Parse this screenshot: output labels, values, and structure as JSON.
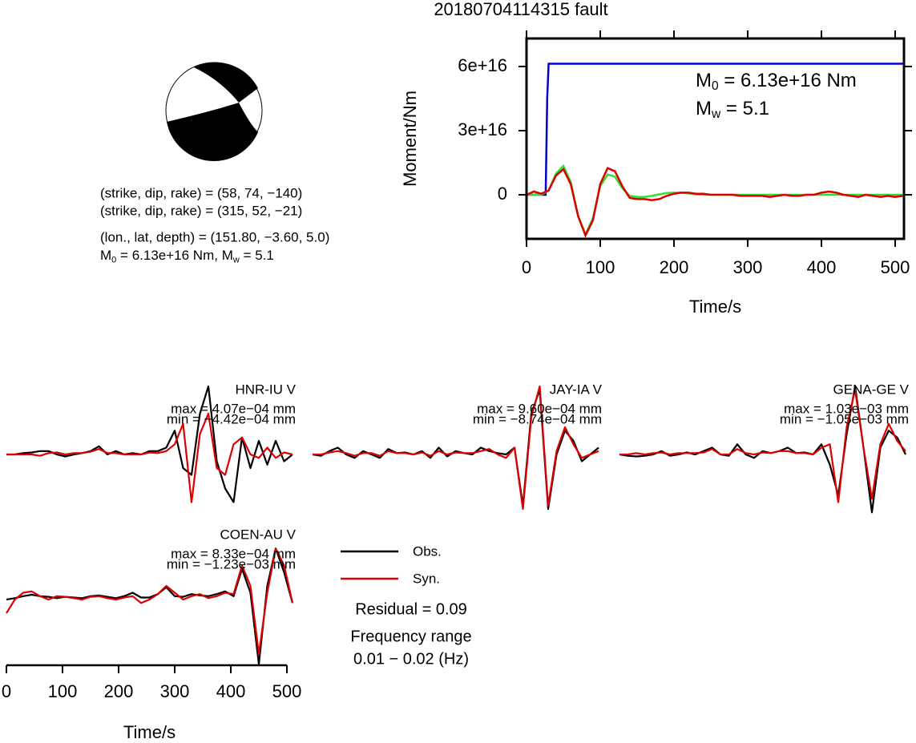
{
  "title": "20180704114315 fault",
  "mechanism": {
    "lines": [
      "(strike, dip, rake) = (58, 74, −140)",
      "(strike, dip, rake) = (315, 52, −21)",
      "(lon., lat, depth) = (151.80, −3.60, 5.0)"
    ],
    "moment_line": [
      "M",
      "0",
      " = 6.13e+16 Nm, M",
      "w",
      " = 5.1"
    ]
  },
  "fit": {
    "residual": "Residual = 0.09",
    "frequency_title": "Frequency range",
    "frequency": "0.01 − 0.02 (Hz)"
  },
  "chart_data": [
    {
      "type": "line",
      "ylabel": "Moment/Nm",
      "xlabel": "Time/s",
      "xlim": [
        0,
        512
      ],
      "xticks": [
        0,
        100,
        200,
        300,
        400,
        500
      ],
      "ylim": [
        -2.06e+16,
        7.31e+16
      ],
      "yticks": [
        0,
        {
          "value": 3e+16,
          "label": "3e+16"
        },
        {
          "value": 6e+16,
          "label": "6e+16"
        }
      ],
      "annotations": [
        [
          "M",
          "0",
          " = 6.13e+16 Nm"
        ],
        [
          "M",
          "w",
          " = 5.1"
        ]
      ],
      "series": [
        {
          "color": "#0000cc",
          "x": [
            0,
            26,
            28,
            30,
            512
          ],
          "values": [
            0,
            0,
            4.5e+16,
            6.13e+16,
            6.13e+16
          ]
        },
        {
          "color": "#33dd33",
          "x": [
            0,
            10,
            20,
            30,
            40,
            50,
            60,
            70,
            80,
            90,
            100,
            110,
            120,
            130,
            140,
            150,
            160,
            170,
            180,
            190,
            200,
            210,
            220,
            230,
            240,
            250,
            260,
            270,
            280,
            290,
            300,
            310,
            320,
            330,
            340,
            350,
            360,
            370,
            380,
            390,
            400,
            410,
            420,
            430,
            440,
            450,
            460,
            470,
            480,
            490,
            500,
            510
          ],
          "values": [
            0,
            0,
            0,
            2000000000000000.0,
            1e+16,
            1.35e+16,
            6000000000000000.0,
            -1e+16,
            -1.85e+16,
            -1.1e+16,
            4000000000000000.0,
            9500000000000000.0,
            8500000000000000.0,
            3000000000000000.0,
            -500000000000000.0,
            -1000000000000000.0,
            -1000000000000000.0,
            -500000000000000.0,
            200000000000000.0,
            800000000000000.0,
            1000000000000000.0,
            1000000000000000.0,
            600000000000000.0,
            200000000000000.0,
            0,
            0,
            0,
            0,
            0,
            0,
            0,
            0,
            0,
            0,
            0,
            0,
            0,
            0,
            0,
            0,
            0,
            0,
            0,
            0,
            0,
            0,
            0,
            0,
            0,
            0,
            0,
            0
          ]
        },
        {
          "color": "#dd0000",
          "x": [
            0,
            10,
            20,
            30,
            40,
            50,
            60,
            70,
            80,
            90,
            100,
            110,
            120,
            130,
            140,
            150,
            160,
            170,
            180,
            190,
            200,
            210,
            220,
            230,
            240,
            250,
            260,
            270,
            280,
            290,
            300,
            310,
            320,
            330,
            340,
            350,
            360,
            370,
            380,
            390,
            400,
            410,
            420,
            430,
            440,
            450,
            460,
            470,
            480,
            490,
            500,
            510
          ],
          "values": [
            0,
            1500000000000000.0,
            500000000000000.0,
            2000000000000000.0,
            9000000000000000.0,
            1.2e+16,
            5000000000000000.0,
            -1e+16,
            -1.9e+16,
            -1.2e+16,
            5000000000000000.0,
            1.25e+16,
            1.1e+16,
            4000000000000000.0,
            -1500000000000000.0,
            -2000000000000000.0,
            -2000000000000000.0,
            -2500000000000000.0,
            -2000000000000000.0,
            -500000000000000.0,
            500000000000000.0,
            1000000000000000.0,
            1000000000000000.0,
            500000000000000.0,
            500000000000000.0,
            0,
            0,
            0,
            0,
            -500000000000000.0,
            -500000000000000.0,
            -500000000000000.0,
            -500000000000000.0,
            -1000000000000000.0,
            -500000000000000.0,
            0,
            -500000000000000.0,
            -500000000000000.0,
            0,
            0,
            1000000000000000.0,
            1500000000000000.0,
            1000000000000000.0,
            0,
            -500000000000000.0,
            -1000000000000000.0,
            0,
            -500000000000000.0,
            -1000000000000000.0,
            -500000000000000.0,
            -1000000000000000.0,
            -500000000000000.0
          ]
        }
      ]
    },
    {
      "type": "waveform",
      "title": "HNR-IU V",
      "max_label": "max = 4.07e−04 mm",
      "min_label": "min = −4.42e−04 mm",
      "xlim": [
        0,
        510
      ],
      "ylim": [
        -1,
        1
      ],
      "x": [
        0,
        15,
        30,
        45,
        60,
        75,
        90,
        105,
        120,
        135,
        150,
        165,
        180,
        195,
        210,
        225,
        240,
        255,
        270,
        285,
        300,
        315,
        330,
        345,
        360,
        375,
        390,
        405,
        420,
        435,
        450,
        465,
        480,
        495,
        510
      ],
      "series": [
        {
          "name": "Obs.",
          "color": "#000000",
          "values": [
            0,
            0,
            0.02,
            0.03,
            0.05,
            0.05,
            0,
            -0.03,
            0,
            0.02,
            0.05,
            0.12,
            0,
            0.05,
            0,
            0.02,
            0,
            0.05,
            0.05,
            0.1,
            0.35,
            -0.2,
            -0.3,
            0.6,
            1.0,
            -0.1,
            -0.5,
            -0.7,
            0.25,
            -0.2,
            0.2,
            -0.15,
            0.2,
            -0.1,
            0
          ]
        },
        {
          "name": "Syn.",
          "color": "#dd0000",
          "values": [
            0,
            0,
            0,
            0,
            -0.02,
            0.02,
            0.03,
            0,
            0.02,
            0.02,
            0.04,
            0.08,
            0.02,
            0.02,
            0,
            0,
            0,
            0.03,
            0.02,
            0.05,
            0.15,
            0.45,
            -0.7,
            0.3,
            0.6,
            -0.2,
            -0.3,
            0.15,
            0.25,
            0,
            -0.05,
            0.1,
            -0.05,
            0.03,
            0
          ]
        }
      ]
    },
    {
      "type": "waveform",
      "title": "JAY-IA V",
      "max_label": "max = 9.60e−04 mm",
      "min_label": "min = −8.74e−04 mm",
      "xlim": [
        0,
        510
      ],
      "ylim": [
        -1,
        1
      ],
      "x": [
        0,
        15,
        30,
        45,
        60,
        75,
        90,
        105,
        120,
        135,
        150,
        165,
        180,
        195,
        210,
        225,
        240,
        255,
        270,
        285,
        300,
        315,
        330,
        345,
        360,
        375,
        390,
        405,
        420,
        435,
        450,
        465,
        480,
        495,
        510
      ],
      "series": [
        {
          "color": "#000000",
          "values": [
            0,
            -0.02,
            0.05,
            0.1,
            0,
            -0.05,
            0.05,
            0,
            -0.05,
            0.08,
            0.02,
            0.03,
            0,
            0.05,
            -0.05,
            0.1,
            -0.03,
            0.05,
            0.02,
            0,
            0.1,
            0.05,
            0.02,
            0,
            0.1,
            -0.75,
            0.6,
            0.95,
            -0.8,
            0,
            0.35,
            0.2,
            -0.1,
            0,
            0.1
          ]
        },
        {
          "color": "#dd0000",
          "values": [
            0,
            0,
            0.03,
            0.05,
            0.02,
            -0.02,
            0.02,
            0.02,
            -0.02,
            0.05,
            0.02,
            0.02,
            0,
            0.03,
            -0.02,
            0.05,
            0,
            0.03,
            0.02,
            0.02,
            0.05,
            0.08,
            0,
            -0.05,
            0.1,
            -0.8,
            0.55,
            1.0,
            -0.75,
            0.05,
            0.4,
            0.15,
            -0.05,
            0,
            0.05
          ]
        }
      ]
    },
    {
      "type": "waveform",
      "title": "GENA-GE V",
      "max_label": "max = 1.03e−03 mm",
      "min_label": "min = −1.05e−03 mm",
      "xlim": [
        0,
        510
      ],
      "ylim": [
        -1,
        1
      ],
      "x": [
        0,
        15,
        30,
        45,
        60,
        75,
        90,
        105,
        120,
        135,
        150,
        165,
        180,
        195,
        210,
        225,
        240,
        255,
        270,
        285,
        300,
        315,
        330,
        345,
        360,
        375,
        390,
        405,
        420,
        435,
        450,
        465,
        480,
        495,
        510
      ],
      "series": [
        {
          "color": "#000000",
          "values": [
            0,
            -0.02,
            -0.03,
            -0.02,
            0,
            0.05,
            -0.02,
            0,
            0.03,
            0,
            0.05,
            0.1,
            0,
            -0.02,
            0.15,
            0,
            -0.05,
            0.05,
            0.02,
            0.05,
            0.1,
            0.02,
            0.03,
            0,
            0.15,
            -0.15,
            -0.6,
            0.3,
            1.0,
            0.1,
            -0.85,
            0.1,
            0.35,
            0.25,
            0
          ]
        },
        {
          "color": "#dd0000",
          "values": [
            0,
            0,
            0.02,
            0,
            0.02,
            0.03,
            0,
            0.02,
            0.02,
            0.02,
            0.03,
            0.08,
            0,
            0,
            0.08,
            0.02,
            0,
            0.03,
            0.02,
            0.05,
            0.05,
            0.02,
            0.02,
            0,
            0.1,
            0.15,
            -0.7,
            0.4,
            0.95,
            0.1,
            -0.65,
            0.15,
            0.45,
            0.2,
            0.05
          ]
        }
      ]
    },
    {
      "type": "waveform",
      "title": "COEN-AU V",
      "max_label": "max = 8.33e−04 mm",
      "min_label": "min = −1.23e−03 mm",
      "xlim": [
        0,
        510
      ],
      "ylim": [
        -1,
        1
      ],
      "xticks": [
        0,
        100,
        200,
        300,
        400,
        500
      ],
      "xlabel": "Time/s",
      "x": [
        0,
        15,
        30,
        45,
        60,
        75,
        90,
        105,
        120,
        135,
        150,
        165,
        180,
        195,
        210,
        225,
        240,
        255,
        270,
        285,
        300,
        315,
        330,
        345,
        360,
        375,
        390,
        405,
        420,
        435,
        450,
        465,
        480,
        495,
        510
      ],
      "series": [
        {
          "color": "#000000",
          "values": [
            0,
            0.02,
            0.05,
            0.07,
            0.05,
            0.04,
            0.02,
            0.04,
            0.03,
            0.02,
            0.05,
            0.06,
            0.04,
            0.02,
            0.05,
            0.1,
            0.03,
            0.03,
            0.08,
            0.18,
            0.05,
            0.04,
            0.08,
            0.06,
            0.05,
            0.08,
            0.12,
            0.05,
            0.45,
            0.1,
            -0.95,
            0.2,
            0.75,
            0.4,
            -0.05
          ]
        },
        {
          "color": "#dd0000",
          "values": [
            -0.2,
            0,
            0.1,
            0.12,
            0.05,
            0,
            0.05,
            0.04,
            0.02,
            0,
            0.04,
            0.05,
            0.02,
            0,
            0.03,
            0.05,
            -0.05,
            0,
            0.08,
            0.2,
            0.1,
            0,
            0.05,
            0.08,
            0.02,
            0.05,
            0.1,
            0.08,
            0.5,
            0.2,
            -0.8,
            0.1,
            0.75,
            0.5,
            -0.05
          ]
        }
      ]
    }
  ]
}
